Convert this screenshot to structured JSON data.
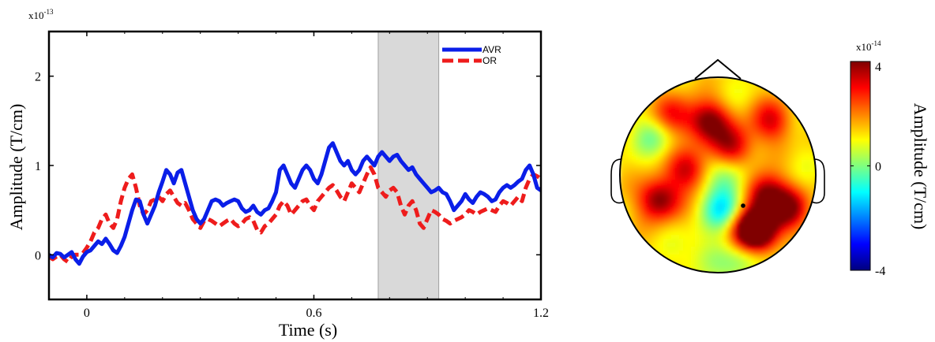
{
  "colors": {
    "avr": "#0a1ee8",
    "or": "#ee1c1c",
    "shade": "#d9d9d9",
    "axis": "#000000"
  },
  "chart_data": [
    {
      "type": "line",
      "title": "",
      "xlabel": "Time (s)",
      "ylabel": "Amplitude (T/cm)",
      "y_multiplier": "x10",
      "y_multiplier_exp": "-13",
      "xlim": [
        -0.1,
        1.2
      ],
      "ylim": [
        -0.5,
        2.5
      ],
      "xticks": [
        0,
        0.6,
        1.2
      ],
      "xtick_labels": [
        "0",
        "0.6",
        "1.2"
      ],
      "yticks": [
        0,
        1,
        2
      ],
      "ytick_labels": [
        "0",
        "1",
        "2"
      ],
      "shaded_interval": [
        0.77,
        0.93
      ],
      "legend_position": "top-right",
      "grid": false,
      "series": [
        {
          "name": "AVR",
          "style": "solid",
          "x": [
            -0.1,
            -0.09,
            -0.08,
            -0.07,
            -0.06,
            -0.05,
            -0.04,
            -0.03,
            -0.02,
            -0.01,
            0,
            0.01,
            0.02,
            0.03,
            0.04,
            0.05,
            0.06,
            0.07,
            0.08,
            0.09,
            0.1,
            0.11,
            0.12,
            0.13,
            0.14,
            0.15,
            0.16,
            0.17,
            0.18,
            0.19,
            0.2,
            0.21,
            0.22,
            0.23,
            0.24,
            0.25,
            0.26,
            0.27,
            0.28,
            0.29,
            0.3,
            0.31,
            0.32,
            0.33,
            0.34,
            0.35,
            0.36,
            0.37,
            0.38,
            0.39,
            0.4,
            0.41,
            0.42,
            0.43,
            0.44,
            0.45,
            0.46,
            0.47,
            0.48,
            0.49,
            0.5,
            0.51,
            0.52,
            0.53,
            0.54,
            0.55,
            0.56,
            0.57,
            0.58,
            0.59,
            0.6,
            0.61,
            0.62,
            0.63,
            0.64,
            0.65,
            0.66,
            0.67,
            0.68,
            0.69,
            0.7,
            0.71,
            0.72,
            0.73,
            0.74,
            0.75,
            0.76,
            0.77,
            0.78,
            0.79,
            0.8,
            0.81,
            0.82,
            0.83,
            0.84,
            0.85,
            0.86,
            0.87,
            0.88,
            0.89,
            0.9,
            0.91,
            0.92,
            0.93,
            0.94,
            0.95,
            0.96,
            0.97,
            0.98,
            0.99,
            1,
            1.01,
            1.02,
            1.03,
            1.04,
            1.05,
            1.06,
            1.07,
            1.08,
            1.09,
            1.1,
            1.11,
            1.12,
            1.13,
            1.14,
            1.15,
            1.16,
            1.17,
            1.18,
            1.19,
            1.2
          ],
          "y": [
            0,
            -0.03,
            0.02,
            0.01,
            -0.03,
            0.0,
            0.03,
            -0.05,
            -0.1,
            -0.02,
            0.03,
            0.05,
            0.1,
            0.15,
            0.12,
            0.18,
            0.12,
            0.05,
            0.02,
            0.1,
            0.2,
            0.35,
            0.5,
            0.62,
            0.6,
            0.45,
            0.35,
            0.45,
            0.55,
            0.7,
            0.82,
            0.95,
            0.9,
            0.8,
            0.92,
            0.95,
            0.8,
            0.65,
            0.5,
            0.4,
            0.35,
            0.4,
            0.5,
            0.6,
            0.62,
            0.6,
            0.55,
            0.58,
            0.6,
            0.62,
            0.6,
            0.52,
            0.48,
            0.5,
            0.55,
            0.48,
            0.45,
            0.5,
            0.52,
            0.6,
            0.7,
            0.95,
            1.0,
            0.9,
            0.8,
            0.75,
            0.85,
            0.95,
            1.0,
            0.95,
            0.85,
            0.8,
            0.9,
            1.05,
            1.2,
            1.25,
            1.15,
            1.05,
            1.0,
            1.05,
            0.95,
            0.9,
            0.95,
            1.05,
            1.1,
            1.05,
            1.0,
            1.1,
            1.15,
            1.1,
            1.05,
            1.1,
            1.12,
            1.05,
            1.0,
            0.95,
            0.98,
            0.9,
            0.85,
            0.8,
            0.75,
            0.7,
            0.72,
            0.75,
            0.7,
            0.68,
            0.6,
            0.5,
            0.55,
            0.6,
            0.68,
            0.62,
            0.58,
            0.65,
            0.7,
            0.68,
            0.65,
            0.6,
            0.62,
            0.7,
            0.75,
            0.78,
            0.75,
            0.78,
            0.82,
            0.85,
            0.95,
            1.0,
            0.9,
            0.75,
            0.72
          ]
        },
        {
          "name": "OR",
          "style": "dashed",
          "x": [
            -0.1,
            -0.09,
            -0.08,
            -0.07,
            -0.06,
            -0.05,
            -0.04,
            -0.03,
            -0.02,
            -0.01,
            0,
            0.01,
            0.02,
            0.03,
            0.04,
            0.05,
            0.06,
            0.07,
            0.08,
            0.09,
            0.1,
            0.11,
            0.12,
            0.13,
            0.14,
            0.15,
            0.16,
            0.17,
            0.18,
            0.19,
            0.2,
            0.21,
            0.22,
            0.23,
            0.24,
            0.25,
            0.26,
            0.27,
            0.28,
            0.29,
            0.3,
            0.31,
            0.32,
            0.33,
            0.34,
            0.35,
            0.36,
            0.37,
            0.38,
            0.39,
            0.4,
            0.41,
            0.42,
            0.43,
            0.44,
            0.45,
            0.46,
            0.47,
            0.48,
            0.49,
            0.5,
            0.51,
            0.52,
            0.53,
            0.54,
            0.55,
            0.56,
            0.57,
            0.58,
            0.59,
            0.6,
            0.61,
            0.62,
            0.63,
            0.64,
            0.65,
            0.66,
            0.67,
            0.68,
            0.69,
            0.7,
            0.71,
            0.72,
            0.73,
            0.74,
            0.75,
            0.76,
            0.77,
            0.78,
            0.79,
            0.8,
            0.81,
            0.82,
            0.83,
            0.84,
            0.85,
            0.86,
            0.87,
            0.88,
            0.89,
            0.9,
            0.91,
            0.92,
            0.93,
            0.94,
            0.95,
            0.96,
            0.97,
            0.98,
            0.99,
            1,
            1.01,
            1.02,
            1.03,
            1.04,
            1.05,
            1.06,
            1.07,
            1.08,
            1.09,
            1.1,
            1.11,
            1.12,
            1.13,
            1.14,
            1.15,
            1.16,
            1.17,
            1.18,
            1.19,
            1.2
          ],
          "y": [
            -0.02,
            -0.05,
            -0.02,
            0.0,
            -0.05,
            -0.08,
            -0.02,
            0.0,
            0.0,
            0.02,
            0.08,
            0.15,
            0.25,
            0.3,
            0.4,
            0.45,
            0.35,
            0.3,
            0.4,
            0.6,
            0.75,
            0.85,
            0.9,
            0.75,
            0.55,
            0.45,
            0.5,
            0.6,
            0.62,
            0.65,
            0.6,
            0.68,
            0.72,
            0.65,
            0.58,
            0.55,
            0.58,
            0.5,
            0.4,
            0.35,
            0.3,
            0.38,
            0.4,
            0.38,
            0.35,
            0.32,
            0.35,
            0.38,
            0.4,
            0.35,
            0.32,
            0.35,
            0.4,
            0.42,
            0.38,
            0.28,
            0.25,
            0.32,
            0.35,
            0.4,
            0.45,
            0.55,
            0.6,
            0.55,
            0.45,
            0.5,
            0.55,
            0.6,
            0.62,
            0.55,
            0.5,
            0.6,
            0.65,
            0.7,
            0.75,
            0.78,
            0.72,
            0.65,
            0.6,
            0.7,
            0.8,
            0.75,
            0.7,
            0.8,
            0.9,
            0.98,
            0.9,
            0.75,
            0.7,
            0.65,
            0.72,
            0.75,
            0.7,
            0.55,
            0.45,
            0.55,
            0.6,
            0.5,
            0.35,
            0.3,
            0.4,
            0.5,
            0.48,
            0.45,
            0.4,
            0.38,
            0.35,
            0.38,
            0.4,
            0.42,
            0.45,
            0.5,
            0.48,
            0.45,
            0.48,
            0.5,
            0.52,
            0.5,
            0.48,
            0.55,
            0.6,
            0.58,
            0.55,
            0.6,
            0.65,
            0.6,
            0.75,
            0.85,
            0.9,
            0.88,
            0.85
          ]
        }
      ]
    },
    {
      "type": "heatmap",
      "title": "",
      "colorbar_label": "Amplitude (T/cm)",
      "colorbar_multiplier": "x10",
      "colorbar_multiplier_exp": "-14",
      "colorbar_range": [
        -4,
        4
      ],
      "colorbar_ticks": [
        4,
        0,
        -4
      ],
      "colorbar_tick_labels": [
        "4",
        "0",
        "-4"
      ],
      "colormap": "jet",
      "peak_location": "right hemisphere, center-lower",
      "sources": [
        {
          "u": 0.35,
          "v": 0.55,
          "amp": 3.2
        },
        {
          "u": 0.48,
          "v": 0.2,
          "amp": 3.0
        },
        {
          "u": 0.42,
          "v": 0.6,
          "amp": 2.5
        },
        {
          "u": -0.6,
          "v": 0.25,
          "amp": 3.0
        },
        {
          "u": 0.72,
          "v": 0.35,
          "amp": 2.6
        },
        {
          "u": -0.1,
          "v": -0.55,
          "amp": 2.8
        },
        {
          "u": 0.15,
          "v": -0.3,
          "amp": 2.4
        },
        {
          "u": -0.3,
          "v": -0.05,
          "amp": 2.2
        },
        {
          "u": 0.55,
          "v": -0.55,
          "amp": 2.0
        },
        {
          "u": -0.45,
          "v": -0.6,
          "amp": 1.8
        },
        {
          "u": 0.05,
          "v": 0.35,
          "amp": -2.2
        },
        {
          "u": -0.65,
          "v": -0.4,
          "amp": -1.2
        },
        {
          "u": 0.1,
          "v": 0.05,
          "amp": -1.5
        },
        {
          "u": 0.3,
          "v": 0.85,
          "amp": -1.0
        },
        {
          "u": -0.1,
          "v": 0.85,
          "amp": -1.0
        }
      ],
      "baseline": 1.2
    }
  ]
}
